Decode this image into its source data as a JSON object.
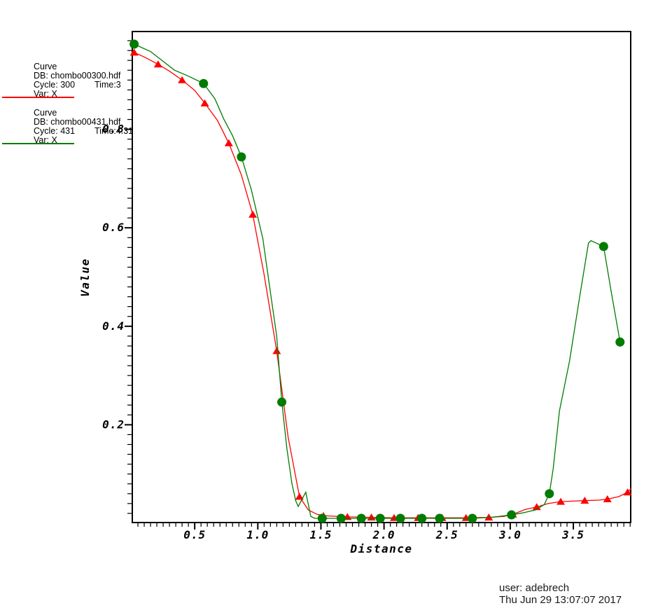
{
  "window": {
    "background": "#ffffff"
  },
  "legend": {
    "entries": [
      {
        "title": "Curve",
        "db": "DB: chombo00300.hdf",
        "cycle": "Cycle: 300",
        "time": "Time:3",
        "var": "Var: X",
        "color": "#ff0000"
      },
      {
        "title": "Curve",
        "db": "DB: chombo00431.hdf",
        "cycle": "Cycle: 431",
        "time": "Time:4.31",
        "var": "Var: X",
        "color": "#007c00"
      }
    ]
  },
  "footer": {
    "user_line": "user: adebrech",
    "date_line": "Thu Jun 29 13:07:07 2017"
  },
  "chart_data": {
    "type": "line",
    "title": "",
    "xlabel": "Distance",
    "ylabel": "Value",
    "xlim": [
      0,
      3.96
    ],
    "ylim": [
      0,
      1.0
    ],
    "grid": false,
    "legend_position": "top-left",
    "x_major_ticks": [
      0.5,
      1.0,
      1.5,
      2.0,
      2.5,
      3.0,
      3.5
    ],
    "x_tick_labels": [
      "0.5",
      "1.0",
      "1.5",
      "2.0",
      "2.5",
      "3.0",
      "3.5"
    ],
    "x_minor_step": 0.05,
    "y_major_ticks": [
      0.2,
      0.4,
      0.6,
      0.8
    ],
    "y_tick_labels": [
      "0.2",
      "0.4",
      "0.6",
      "0.8"
    ],
    "y_minor_step": 0.02,
    "axis_color": "#000000",
    "series": [
      {
        "name": "chombo00300.hdf Cycle 300 Time 3, Var X",
        "color": "#ff0000",
        "marker": "triangle",
        "points": [
          [
            0.02,
            0.956
          ],
          [
            0.1,
            0.947
          ],
          [
            0.21,
            0.932
          ],
          [
            0.3,
            0.918
          ],
          [
            0.4,
            0.9
          ],
          [
            0.5,
            0.879
          ],
          [
            0.58,
            0.853
          ],
          [
            0.68,
            0.818
          ],
          [
            0.77,
            0.772
          ],
          [
            0.87,
            0.707
          ],
          [
            0.96,
            0.627
          ],
          [
            1.05,
            0.505
          ],
          [
            1.15,
            0.35
          ],
          [
            1.24,
            0.175
          ],
          [
            1.33,
            0.054
          ],
          [
            1.4,
            0.027
          ],
          [
            1.47,
            0.018
          ],
          [
            1.55,
            0.015
          ],
          [
            1.71,
            0.013
          ],
          [
            1.9,
            0.012
          ],
          [
            2.08,
            0.011
          ],
          [
            2.27,
            0.011
          ],
          [
            2.46,
            0.011
          ],
          [
            2.65,
            0.011
          ],
          [
            2.83,
            0.012
          ],
          [
            2.95,
            0.014
          ],
          [
            3.02,
            0.018
          ],
          [
            3.12,
            0.028
          ],
          [
            3.21,
            0.033
          ],
          [
            3.3,
            0.04
          ],
          [
            3.4,
            0.044
          ],
          [
            3.5,
            0.045
          ],
          [
            3.59,
            0.046
          ],
          [
            3.7,
            0.047
          ],
          [
            3.77,
            0.049
          ],
          [
            3.86,
            0.054
          ],
          [
            3.93,
            0.063
          ],
          [
            3.96,
            0.071
          ]
        ],
        "marker_points": [
          [
            0.02,
            0.956
          ],
          [
            0.21,
            0.932
          ],
          [
            0.4,
            0.9
          ],
          [
            0.58,
            0.853
          ],
          [
            0.77,
            0.772
          ],
          [
            0.96,
            0.627
          ],
          [
            1.15,
            0.35
          ],
          [
            1.33,
            0.054
          ],
          [
            1.52,
            0.015
          ],
          [
            1.71,
            0.013
          ],
          [
            1.9,
            0.012
          ],
          [
            2.08,
            0.011
          ],
          [
            2.27,
            0.011
          ],
          [
            2.46,
            0.011
          ],
          [
            2.65,
            0.011
          ],
          [
            2.83,
            0.012
          ],
          [
            3.02,
            0.018
          ],
          [
            3.21,
            0.033
          ],
          [
            3.4,
            0.044
          ],
          [
            3.59,
            0.046
          ],
          [
            3.77,
            0.049
          ],
          [
            3.93,
            0.063
          ]
        ]
      },
      {
        "name": "chombo00431.hdf Cycle 431 Time 4.31, Var X",
        "color": "#007c00",
        "marker": "circle",
        "points": [
          [
            0.02,
            0.973
          ],
          [
            0.15,
            0.958
          ],
          [
            0.34,
            0.92
          ],
          [
            0.45,
            0.908
          ],
          [
            0.57,
            0.893
          ],
          [
            0.66,
            0.862
          ],
          [
            0.73,
            0.821
          ],
          [
            0.8,
            0.787
          ],
          [
            0.87,
            0.744
          ],
          [
            0.95,
            0.676
          ],
          [
            1.04,
            0.578
          ],
          [
            1.1,
            0.469
          ],
          [
            1.15,
            0.38
          ],
          [
            1.19,
            0.246
          ],
          [
            1.23,
            0.152
          ],
          [
            1.27,
            0.081
          ],
          [
            1.3,
            0.046
          ],
          [
            1.32,
            0.034
          ],
          [
            1.38,
            0.063
          ],
          [
            1.42,
            0.014
          ],
          [
            1.45,
            0.01
          ],
          [
            1.66,
            0.01
          ],
          [
            1.82,
            0.01
          ],
          [
            1.97,
            0.01
          ],
          [
            2.13,
            0.01
          ],
          [
            2.3,
            0.01
          ],
          [
            2.44,
            0.01
          ],
          [
            2.7,
            0.01
          ],
          [
            2.85,
            0.012
          ],
          [
            3.01,
            0.017
          ],
          [
            3.1,
            0.021
          ],
          [
            3.2,
            0.027
          ],
          [
            3.27,
            0.038
          ],
          [
            3.31,
            0.06
          ],
          [
            3.34,
            0.11
          ],
          [
            3.39,
            0.228
          ],
          [
            3.47,
            0.33
          ],
          [
            3.55,
            0.46
          ],
          [
            3.62,
            0.569
          ],
          [
            3.64,
            0.574
          ],
          [
            3.74,
            0.562
          ],
          [
            3.8,
            0.47
          ],
          [
            3.87,
            0.368
          ]
        ],
        "marker_points": [
          [
            0.02,
            0.973
          ],
          [
            0.57,
            0.893
          ],
          [
            0.87,
            0.744
          ],
          [
            1.19,
            0.246
          ],
          [
            1.51,
            0.01
          ],
          [
            1.66,
            0.01
          ],
          [
            1.82,
            0.01
          ],
          [
            1.97,
            0.01
          ],
          [
            2.13,
            0.01
          ],
          [
            2.3,
            0.01
          ],
          [
            2.44,
            0.01
          ],
          [
            2.7,
            0.01
          ],
          [
            3.01,
            0.017
          ],
          [
            3.31,
            0.06
          ],
          [
            3.74,
            0.562
          ],
          [
            3.87,
            0.368
          ]
        ]
      }
    ]
  }
}
